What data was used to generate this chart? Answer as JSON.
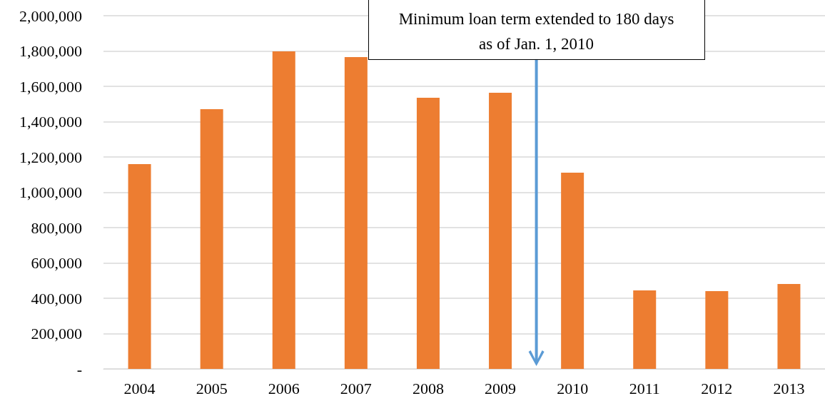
{
  "chart_data": {
    "type": "bar",
    "categories": [
      "2004",
      "2005",
      "2006",
      "2007",
      "2008",
      "2009",
      "2010",
      "2011",
      "2012",
      "2013"
    ],
    "values": [
      1160000,
      1471000,
      1798000,
      1766000,
      1535000,
      1564000,
      1111000,
      444000,
      440000,
      481000
    ],
    "color": "#ed7d31",
    "ylim": [
      0,
      2000000
    ],
    "yticks": [
      {
        "value": 0,
        "label": "-"
      },
      {
        "value": 200000,
        "label": "200,000"
      },
      {
        "value": 400000,
        "label": "400,000"
      },
      {
        "value": 600000,
        "label": "600,000"
      },
      {
        "value": 800000,
        "label": "800,000"
      },
      {
        "value": 1000000,
        "label": "1,000,000"
      },
      {
        "value": 1200000,
        "label": "1,200,000"
      },
      {
        "value": 1400000,
        "label": "1,400,000"
      },
      {
        "value": 1600000,
        "label": "1,600,000"
      },
      {
        "value": 1800000,
        "label": "1,800,000"
      },
      {
        "value": 2000000,
        "label": "2,000,000"
      }
    ],
    "grid": "y",
    "annotations": [
      "Minimum loan term extended to 180 days as of Jan. 1, 2010"
    ]
  }
}
